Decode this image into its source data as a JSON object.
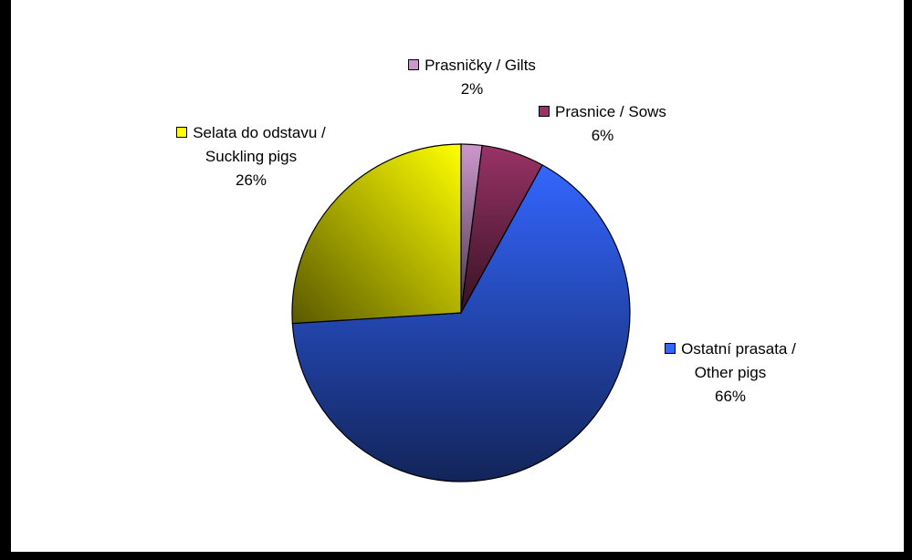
{
  "chart_data": {
    "type": "pie",
    "categories": [
      "Prasničky / Gilts",
      "Prasnice / Sows",
      "Ostatní prasata / Other pigs",
      "Selata do odstavu / Suckling pigs"
    ],
    "values": [
      2,
      6,
      66,
      26
    ],
    "value_labels": [
      "2%",
      "6%",
      "66%",
      "26%"
    ],
    "colors": [
      "#cc99cc",
      "#993366",
      "#3366ff",
      "#ffff00"
    ]
  }
}
